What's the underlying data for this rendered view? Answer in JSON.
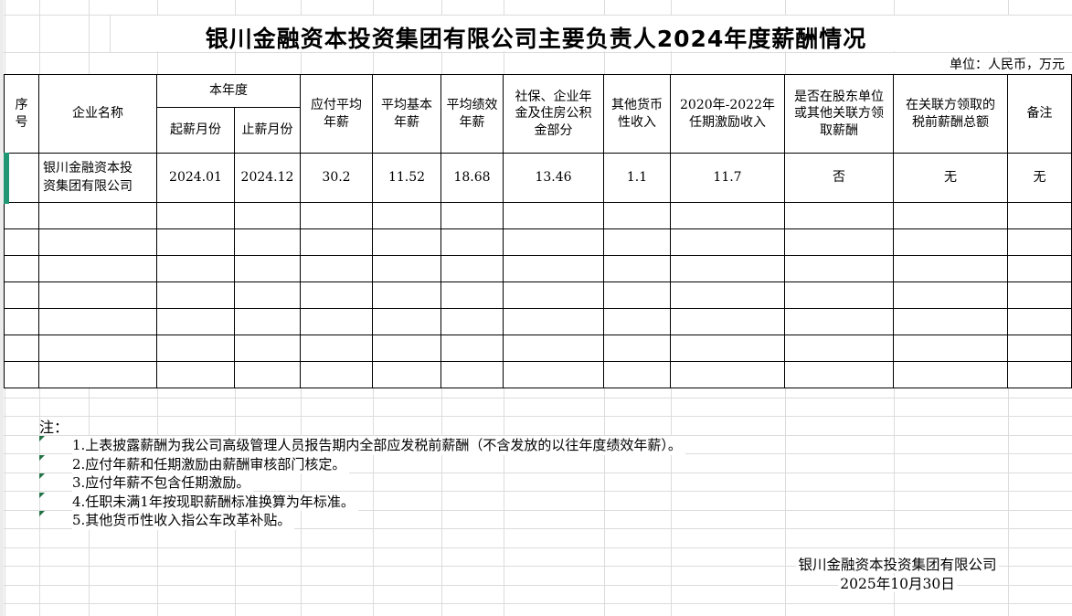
{
  "title": "银川金融资本投资集团有限公司主要负责人2024年度薪酬情况",
  "unit_label": "单位：人民币，万元",
  "table": {
    "headers": {
      "seq": "序号",
      "company": "企业名称",
      "current_year_group": "本年度",
      "start_month": "起薪月份",
      "end_month": "止薪月份",
      "payable_avg_salary": "应付平均\n年薪",
      "avg_base_salary": "平均基本\n年薪",
      "avg_perf_salary": "平均绩效\n年薪",
      "social_insurance": "社保、企业年\n金及住房公积\n金部分",
      "other_monetary_income": "其他货币\n性收入",
      "term_incentive": "2020年-2022年\n任期激励收入",
      "salary_from_related": "是否在股东单位\n或其他关联方领\n取薪酬",
      "related_pretax_total": "在关联方领取的\n税前薪酬总额",
      "remark": "备注"
    },
    "rows": [
      {
        "seq": "",
        "company": "银川金融资本投资集团有限公司",
        "start_month": "2024.01",
        "end_month": "2024.12",
        "payable_avg_salary": "30.2",
        "avg_base_salary": "11.52",
        "avg_perf_salary": "18.68",
        "social_insurance": "13.46",
        "other_monetary_income": "1.1",
        "term_incentive": "11.7",
        "salary_from_related": "否",
        "related_pretax_total": "无",
        "remark": "无"
      }
    ],
    "empty_row_count": 7
  },
  "notes": {
    "label": "注：",
    "items": [
      "1.上表披露薪酬为我公司高级管理人员报告期内全部应发税前薪酬（不含发放的以往年度绩效年薪）。",
      "2.应付年薪和任期激励由薪酬审核部门核定。",
      "3.应付年薪不包含任期激励。",
      "4.任职未满1年按现职薪酬标准换算为年标准。",
      "5.其他货币性收入指公车改革补贴。"
    ]
  },
  "footer": {
    "company": "银川金融资本投资集团有限公司",
    "date": "2025年10月30日"
  }
}
